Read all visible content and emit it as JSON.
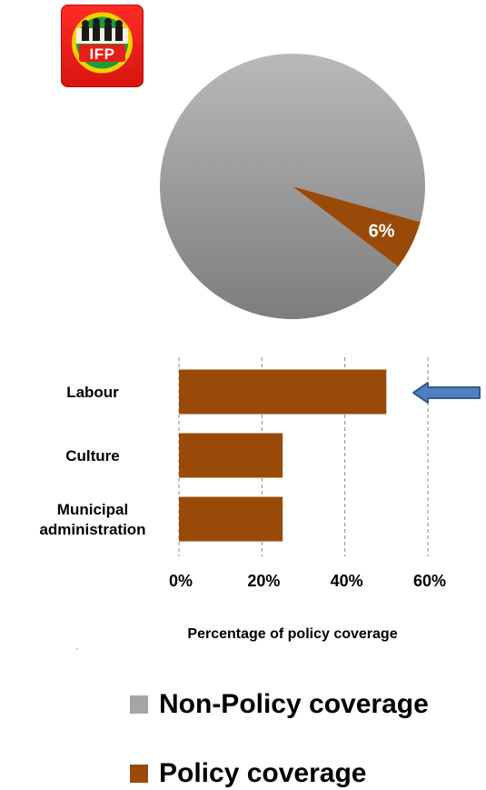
{
  "logo": {
    "text": "IFP",
    "colors": {
      "background": "#e61e1a",
      "ring": "#f5d000",
      "band": "#1f9a3a"
    }
  },
  "colors": {
    "policy": "#9a4a08",
    "non_policy": "#a5a5a5",
    "arrow": "#4f7fbf"
  },
  "chart_data": [
    {
      "type": "pie",
      "slices": [
        {
          "name": "Non-Policy coverage",
          "value": 94,
          "label": ""
        },
        {
          "name": "Policy coverage",
          "value": 6,
          "label": "6%"
        }
      ],
      "legend": {
        "placement": "bottom",
        "entries": [
          "Non-Policy coverage",
          "Policy coverage"
        ]
      }
    },
    {
      "type": "bar",
      "orientation": "horizontal",
      "categories": [
        "Labour",
        "Culture",
        "Municipal administration"
      ],
      "category_lines": [
        [
          "Labour"
        ],
        [
          "Culture"
        ],
        [
          "Municipal",
          "administration"
        ]
      ],
      "values": [
        50,
        25,
        25
      ],
      "xlabel": "Percentage of policy coverage",
      "xlim": [
        0,
        60
      ],
      "xticks": [
        0,
        20,
        40,
        60
      ],
      "xtick_labels": [
        "0%",
        "20%",
        "40%",
        "60%"
      ],
      "grid": "vertical dashed",
      "highlight": "Labour"
    }
  ]
}
